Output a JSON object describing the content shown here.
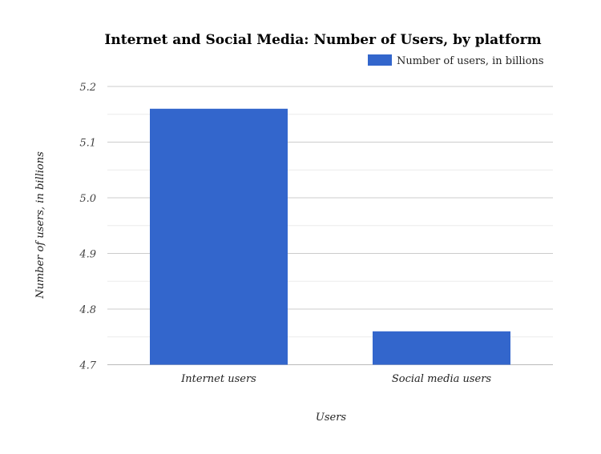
{
  "chart_data": {
    "type": "bar",
    "title": "Internet and Social Media: Number of Users, by platform",
    "xlabel": "Users",
    "ylabel": "Number of users, in billions",
    "categories": [
      "Internet users",
      "Social media users"
    ],
    "series": [
      {
        "name": "Number of users, in billions",
        "values": [
          5.16,
          4.76
        ],
        "color": "#3366cc"
      }
    ],
    "ylim": [
      4.7,
      5.2
    ],
    "yticks": [
      "4.7",
      "4.8",
      "4.9",
      "5.0",
      "5.1",
      "5.2"
    ],
    "grid": true,
    "legend": "top-right"
  }
}
